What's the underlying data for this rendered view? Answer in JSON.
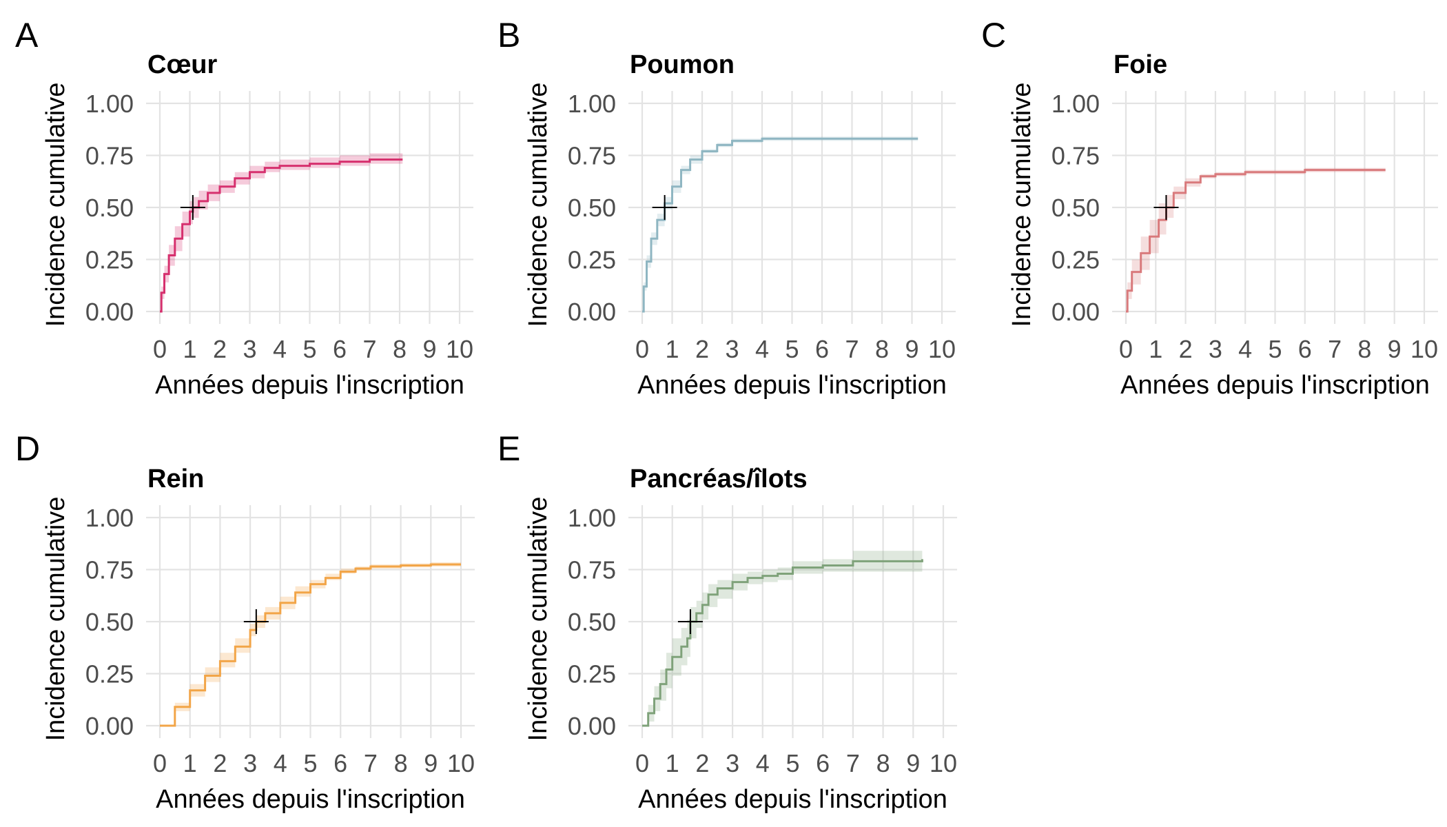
{
  "figure": {
    "ylabel": "Incidence cumulative",
    "xlabel": "Années depuis l'inscription"
  },
  "chart_data": [
    {
      "type": "line",
      "panel": "A",
      "title": "Cœur",
      "color": "#d6306e",
      "xlabel": "Années depuis l'inscription",
      "ylabel": "Incidence cumulative",
      "xlim": [
        0,
        10
      ],
      "ylim": [
        0,
        1
      ],
      "xticks": [
        "0",
        "1",
        "2",
        "3",
        "4",
        "5",
        "6",
        "7",
        "8",
        "9",
        "10"
      ],
      "yticks": [
        "0.00",
        "0.25",
        "0.50",
        "0.75",
        "1.00"
      ],
      "grid": true,
      "median_marker": {
        "x": 1.1,
        "y": 0.5
      },
      "series": [
        {
          "x": [
            0,
            0.05,
            0.15,
            0.3,
            0.5,
            0.75,
            1.0,
            1.1,
            1.3,
            1.6,
            2.0,
            2.5,
            3.0,
            3.5,
            4.0,
            5.0,
            6.0,
            7.0,
            8.1
          ],
          "y": [
            0,
            0.09,
            0.18,
            0.27,
            0.35,
            0.42,
            0.48,
            0.5,
            0.53,
            0.57,
            0.6,
            0.64,
            0.67,
            0.69,
            0.7,
            0.71,
            0.72,
            0.73,
            0.73
          ],
          "lower": [
            0,
            0.06,
            0.14,
            0.22,
            0.29,
            0.36,
            0.42,
            0.45,
            0.49,
            0.53,
            0.57,
            0.61,
            0.64,
            0.67,
            0.68,
            0.69,
            0.7,
            0.71,
            0.71
          ],
          "upper": [
            0,
            0.12,
            0.22,
            0.32,
            0.41,
            0.48,
            0.53,
            0.55,
            0.58,
            0.61,
            0.63,
            0.67,
            0.7,
            0.72,
            0.73,
            0.74,
            0.75,
            0.76,
            0.76
          ]
        }
      ]
    },
    {
      "type": "line",
      "panel": "B",
      "title": "Poumon",
      "color": "#8fb6c2",
      "xlabel": "Années depuis l'inscription",
      "ylabel": "Incidence cumulative",
      "xlim": [
        0,
        10
      ],
      "ylim": [
        0,
        1
      ],
      "xticks": [
        "0",
        "1",
        "2",
        "3",
        "4",
        "5",
        "6",
        "7",
        "8",
        "9",
        "10"
      ],
      "yticks": [
        "0.00",
        "0.25",
        "0.50",
        "0.75",
        "1.00"
      ],
      "grid": true,
      "median_marker": {
        "x": 0.75,
        "y": 0.5
      },
      "series": [
        {
          "x": [
            0,
            0.05,
            0.15,
            0.3,
            0.5,
            0.75,
            1.0,
            1.3,
            1.6,
            2.0,
            2.5,
            3.0,
            4.0,
            5.0,
            7.0,
            9.2
          ],
          "y": [
            0,
            0.12,
            0.24,
            0.35,
            0.44,
            0.52,
            0.6,
            0.68,
            0.73,
            0.77,
            0.8,
            0.82,
            0.83,
            0.83,
            0.83,
            0.83
          ],
          "lower": [
            0,
            0.1,
            0.21,
            0.32,
            0.41,
            0.49,
            0.57,
            0.66,
            0.71,
            0.76,
            0.79,
            0.81,
            0.82,
            0.82,
            0.82,
            0.82
          ],
          "upper": [
            0,
            0.14,
            0.27,
            0.38,
            0.47,
            0.55,
            0.63,
            0.7,
            0.75,
            0.78,
            0.81,
            0.83,
            0.84,
            0.84,
            0.84,
            0.84
          ]
        }
      ]
    },
    {
      "type": "line",
      "panel": "C",
      "title": "Foie",
      "color": "#d97a7c",
      "xlabel": "Années depuis l'inscription",
      "ylabel": "Incidence cumulative",
      "xlim": [
        0,
        10
      ],
      "ylim": [
        0,
        1
      ],
      "xticks": [
        "0",
        "1",
        "2",
        "3",
        "4",
        "5",
        "6",
        "7",
        "8",
        "9",
        "10"
      ],
      "yticks": [
        "0.00",
        "0.25",
        "0.50",
        "0.75",
        "1.00"
      ],
      "grid": true,
      "median_marker": {
        "x": 1.35,
        "y": 0.5
      },
      "series": [
        {
          "x": [
            0,
            0.05,
            0.2,
            0.5,
            0.8,
            1.1,
            1.35,
            1.6,
            2.0,
            2.5,
            3.0,
            4.0,
            5.0,
            6.0,
            8.7
          ],
          "y": [
            0,
            0.1,
            0.19,
            0.28,
            0.36,
            0.44,
            0.5,
            0.57,
            0.62,
            0.65,
            0.66,
            0.67,
            0.67,
            0.68,
            0.68
          ],
          "lower": [
            0,
            0.06,
            0.13,
            0.2,
            0.28,
            0.37,
            0.45,
            0.54,
            0.6,
            0.64,
            0.65,
            0.66,
            0.66,
            0.67,
            0.67
          ],
          "upper": [
            0,
            0.14,
            0.25,
            0.36,
            0.44,
            0.52,
            0.56,
            0.6,
            0.64,
            0.66,
            0.67,
            0.68,
            0.68,
            0.69,
            0.69
          ]
        }
      ]
    },
    {
      "type": "line",
      "panel": "D",
      "title": "Rein",
      "color": "#f2a548",
      "xlabel": "Années depuis l'inscription",
      "ylabel": "Incidence cumulative",
      "xlim": [
        0,
        10
      ],
      "ylim": [
        0,
        1
      ],
      "xticks": [
        "0",
        "1",
        "2",
        "3",
        "4",
        "5",
        "6",
        "7",
        "8",
        "9",
        "10"
      ],
      "yticks": [
        "0.00",
        "0.25",
        "0.50",
        "0.75",
        "1.00"
      ],
      "grid": true,
      "median_marker": {
        "x": 3.2,
        "y": 0.5
      },
      "series": [
        {
          "x": [
            0,
            0.5,
            1.0,
            1.5,
            2.0,
            2.5,
            3.0,
            3.2,
            3.5,
            4.0,
            4.5,
            5.0,
            5.5,
            6.0,
            6.5,
            7.0,
            8.0,
            9.0,
            10.0
          ],
          "y": [
            0,
            0.09,
            0.17,
            0.24,
            0.31,
            0.38,
            0.46,
            0.5,
            0.54,
            0.59,
            0.64,
            0.68,
            0.71,
            0.74,
            0.755,
            0.765,
            0.77,
            0.775,
            0.775
          ],
          "lower": [
            0,
            0.07,
            0.14,
            0.21,
            0.28,
            0.35,
            0.43,
            0.47,
            0.51,
            0.56,
            0.62,
            0.66,
            0.7,
            0.73,
            0.745,
            0.755,
            0.76,
            0.765,
            0.765
          ],
          "upper": [
            0,
            0.11,
            0.2,
            0.28,
            0.35,
            0.42,
            0.49,
            0.53,
            0.57,
            0.62,
            0.67,
            0.7,
            0.73,
            0.755,
            0.765,
            0.775,
            0.78,
            0.785,
            0.785
          ]
        }
      ]
    },
    {
      "type": "line",
      "panel": "E",
      "title": "Pancréas/îlots",
      "color": "#7fa27a",
      "xlabel": "Années depuis l'inscription",
      "ylabel": "Incidence cumulative",
      "xlim": [
        0,
        10
      ],
      "ylim": [
        0,
        1
      ],
      "xticks": [
        "0",
        "1",
        "2",
        "3",
        "4",
        "5",
        "6",
        "7",
        "8",
        "9",
        "10"
      ],
      "yticks": [
        "0.00",
        "0.25",
        "0.50",
        "0.75",
        "1.00"
      ],
      "grid": true,
      "median_marker": {
        "x": 1.6,
        "y": 0.5
      },
      "series": [
        {
          "x": [
            0,
            0.2,
            0.4,
            0.6,
            0.8,
            1.0,
            1.3,
            1.5,
            1.6,
            1.8,
            2.0,
            2.2,
            2.5,
            3.0,
            3.5,
            4.0,
            4.5,
            5.0,
            6.0,
            7.0,
            8.0,
            9.3
          ],
          "y": [
            0,
            0.06,
            0.13,
            0.2,
            0.27,
            0.33,
            0.38,
            0.42,
            0.5,
            0.54,
            0.58,
            0.63,
            0.66,
            0.69,
            0.71,
            0.72,
            0.73,
            0.76,
            0.77,
            0.79,
            0.79,
            0.8
          ],
          "lower": [
            0,
            0.02,
            0.07,
            0.12,
            0.18,
            0.24,
            0.29,
            0.33,
            0.42,
            0.47,
            0.51,
            0.57,
            0.61,
            0.65,
            0.68,
            0.69,
            0.7,
            0.73,
            0.74,
            0.74,
            0.74,
            0.75
          ],
          "upper": [
            0,
            0.1,
            0.19,
            0.27,
            0.35,
            0.42,
            0.47,
            0.51,
            0.57,
            0.6,
            0.64,
            0.68,
            0.7,
            0.73,
            0.74,
            0.75,
            0.76,
            0.79,
            0.8,
            0.84,
            0.84,
            0.85
          ]
        }
      ]
    }
  ]
}
